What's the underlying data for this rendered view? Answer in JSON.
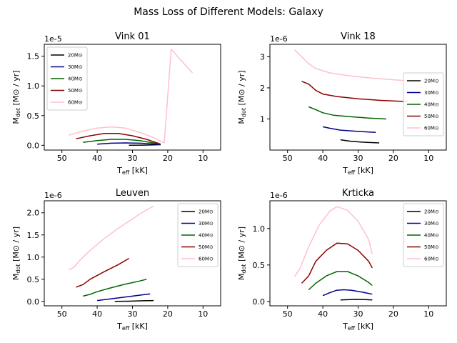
{
  "figure": {
    "title": "Mass Loss of Different Models: Galaxy"
  },
  "legend_labels": [
    "20M⊙",
    "30M⊙",
    "40M⊙",
    "50M⊙",
    "60M⊙"
  ],
  "chart_data": [
    {
      "type": "line",
      "title": "Vink 01",
      "xlabel": "T_eff [kK]",
      "ylabel": "M_dot [M⊙ / yr]",
      "offset_text": "1e-5",
      "xlim": [
        55,
        5
      ],
      "ylim": [
        -0.08,
        1.7
      ],
      "xticks": [
        50,
        40,
        30,
        20,
        10
      ],
      "yticks": [
        0.0,
        0.5,
        1.0,
        1.5
      ],
      "ytick_labels": [
        "0.0",
        "0.5",
        "1.0",
        "1.5"
      ],
      "legend": "upper left",
      "series": [
        {
          "name": "20M⊙",
          "color": "#000000",
          "points": [
            [
              31,
              0.0
            ],
            [
              27,
              0.003
            ],
            [
              25,
              0.005
            ],
            [
              22,
              0.01
            ]
          ]
        },
        {
          "name": "30M⊙",
          "color": "#00008b",
          "points": [
            [
              40,
              0.02
            ],
            [
              36,
              0.035
            ],
            [
              32,
              0.04
            ],
            [
              28,
              0.035
            ],
            [
              25,
              0.025
            ],
            [
              22,
              0.012
            ]
          ]
        },
        {
          "name": "40M⊙",
          "color": "#006400",
          "points": [
            [
              44,
              0.05
            ],
            [
              40,
              0.08
            ],
            [
              36,
              0.1
            ],
            [
              32,
              0.1
            ],
            [
              28,
              0.08
            ],
            [
              25,
              0.05
            ],
            [
              22,
              0.02
            ]
          ]
        },
        {
          "name": "50M⊙",
          "color": "#8b0000",
          "points": [
            [
              46,
              0.11
            ],
            [
              42,
              0.16
            ],
            [
              38,
              0.2
            ],
            [
              34,
              0.2
            ],
            [
              30,
              0.16
            ],
            [
              26,
              0.1
            ],
            [
              22,
              0.02
            ]
          ]
        },
        {
          "name": "60M⊙",
          "color": "#ffc0cb",
          "points": [
            [
              48,
              0.17
            ],
            [
              44,
              0.24
            ],
            [
              40,
              0.29
            ],
            [
              36,
              0.31
            ],
            [
              32,
              0.29
            ],
            [
              28,
              0.22
            ],
            [
              24,
              0.13
            ],
            [
              21,
              0.04
            ],
            [
              19,
              1.62
            ],
            [
              17,
              1.48
            ],
            [
              15,
              1.35
            ],
            [
              13,
              1.22
            ]
          ]
        }
      ]
    },
    {
      "type": "line",
      "title": "Vink 18",
      "xlabel": "T_eff [kK]",
      "ylabel": "M_dot [M⊙ / yr]",
      "offset_text": "1e-6",
      "xlim": [
        55,
        5
      ],
      "ylim": [
        0.0,
        3.4
      ],
      "xticks": [
        50,
        40,
        30,
        20,
        10
      ],
      "yticks": [
        1,
        2,
        3
      ],
      "ytick_labels": [
        "1",
        "2",
        "3"
      ],
      "legend": "right",
      "series": [
        {
          "name": "20M⊙",
          "color": "#000000",
          "points": [
            [
              35,
              0.33
            ],
            [
              32,
              0.28
            ],
            [
              28,
              0.25
            ],
            [
              24,
              0.23
            ]
          ]
        },
        {
          "name": "30M⊙",
          "color": "#00008b",
          "points": [
            [
              40,
              0.75
            ],
            [
              38,
              0.7
            ],
            [
              35,
              0.64
            ],
            [
              30,
              0.6
            ],
            [
              25,
              0.57
            ]
          ]
        },
        {
          "name": "40M⊙",
          "color": "#006400",
          "points": [
            [
              44,
              1.39
            ],
            [
              42,
              1.3
            ],
            [
              40,
              1.2
            ],
            [
              37,
              1.12
            ],
            [
              32,
              1.07
            ],
            [
              27,
              1.03
            ],
            [
              22,
              1.0
            ]
          ]
        },
        {
          "name": "50M⊙",
          "color": "#8b0000",
          "points": [
            [
              46,
              2.21
            ],
            [
              44,
              2.12
            ],
            [
              42,
              1.92
            ],
            [
              40,
              1.8
            ],
            [
              36,
              1.72
            ],
            [
              30,
              1.65
            ],
            [
              24,
              1.6
            ],
            [
              18,
              1.57
            ],
            [
              16,
              1.56
            ]
          ]
        },
        {
          "name": "60M⊙",
          "color": "#ffc0cb",
          "points": [
            [
              48,
              3.22
            ],
            [
              46,
              3.0
            ],
            [
              44,
              2.78
            ],
            [
              42,
              2.62
            ],
            [
              38,
              2.48
            ],
            [
              32,
              2.38
            ],
            [
              26,
              2.31
            ],
            [
              20,
              2.26
            ],
            [
              15,
              2.22
            ],
            [
              12,
              2.2
            ]
          ]
        }
      ]
    },
    {
      "type": "line",
      "title": "Leuven",
      "xlabel": "T_eff [kK]",
      "ylabel": "M_dot [M⊙ / yr]",
      "offset_text": "1e-6",
      "xlim": [
        55,
        5
      ],
      "ylim": [
        -0.1,
        2.27
      ],
      "xticks": [
        50,
        40,
        30,
        20,
        10
      ],
      "yticks": [
        0.0,
        0.5,
        1.0,
        1.5,
        2.0
      ],
      "ytick_labels": [
        "0.0",
        "0.5",
        "1.0",
        "1.5",
        "2.0"
      ],
      "legend": "upper right",
      "series": [
        {
          "name": "20M⊙",
          "color": "#000000",
          "points": [
            [
              35,
              0.0
            ],
            [
              31,
              0.005
            ],
            [
              27,
              0.015
            ],
            [
              24,
              0.02
            ]
          ]
        },
        {
          "name": "30M⊙",
          "color": "#00008b",
          "points": [
            [
              40,
              0.02
            ],
            [
              36,
              0.06
            ],
            [
              32,
              0.1
            ],
            [
              28,
              0.14
            ],
            [
              25,
              0.17
            ]
          ]
        },
        {
          "name": "40M⊙",
          "color": "#006400",
          "points": [
            [
              44,
              0.12
            ],
            [
              42,
              0.16
            ],
            [
              40,
              0.22
            ],
            [
              36,
              0.31
            ],
            [
              32,
              0.39
            ],
            [
              28,
              0.46
            ],
            [
              26,
              0.5
            ]
          ]
        },
        {
          "name": "50M⊙",
          "color": "#8b0000",
          "points": [
            [
              46,
              0.32
            ],
            [
              44,
              0.38
            ],
            [
              42,
              0.5
            ],
            [
              38,
              0.67
            ],
            [
              34,
              0.83
            ],
            [
              31,
              0.97
            ]
          ]
        },
        {
          "name": "60M⊙",
          "color": "#ffc0cb",
          "points": [
            [
              48,
              0.71
            ],
            [
              46.5,
              0.78
            ],
            [
              45,
              0.92
            ],
            [
              42,
              1.15
            ],
            [
              38,
              1.42
            ],
            [
              34,
              1.65
            ],
            [
              30,
              1.86
            ],
            [
              27,
              2.02
            ],
            [
              24,
              2.15
            ]
          ]
        }
      ]
    },
    {
      "type": "line",
      "title": "Krticka",
      "xlabel": "T_eff [kK]",
      "ylabel": "M_dot [M⊙ / yr]",
      "offset_text": "1e-6",
      "xlim": [
        55,
        5
      ],
      "ylim": [
        -0.06,
        1.38
      ],
      "xticks": [
        50,
        40,
        30,
        20,
        10
      ],
      "yticks": [
        0.0,
        0.5,
        1.0
      ],
      "ytick_labels": [
        "0.0",
        "0.5",
        "1.0"
      ],
      "legend": "upper right",
      "series": [
        {
          "name": "20M⊙",
          "color": "#000000",
          "points": [
            [
              35,
              0.02
            ],
            [
              31,
              0.028
            ],
            [
              28,
              0.025
            ],
            [
              26,
              0.02
            ]
          ]
        },
        {
          "name": "30M⊙",
          "color": "#00008b",
          "points": [
            [
              40,
              0.08
            ],
            [
              38,
              0.12
            ],
            [
              36,
              0.155
            ],
            [
              34,
              0.16
            ],
            [
              32,
              0.155
            ],
            [
              29,
              0.13
            ],
            [
              26,
              0.1
            ]
          ]
        },
        {
          "name": "40M⊙",
          "color": "#006400",
          "points": [
            [
              44,
              0.16
            ],
            [
              42,
              0.25
            ],
            [
              39,
              0.35
            ],
            [
              36,
              0.41
            ],
            [
              33,
              0.41
            ],
            [
              30,
              0.35
            ],
            [
              27,
              0.26
            ],
            [
              26,
              0.22
            ]
          ]
        },
        {
          "name": "50M⊙",
          "color": "#8b0000",
          "points": [
            [
              46,
              0.25
            ],
            [
              44,
              0.35
            ],
            [
              42,
              0.55
            ],
            [
              39,
              0.7
            ],
            [
              36,
              0.8
            ],
            [
              33,
              0.79
            ],
            [
              30,
              0.7
            ],
            [
              27,
              0.55
            ],
            [
              26,
              0.46
            ]
          ]
        },
        {
          "name": "60M⊙",
          "color": "#ffc0cb",
          "points": [
            [
              48,
              0.34
            ],
            [
              46.5,
              0.45
            ],
            [
              44,
              0.75
            ],
            [
              41,
              1.05
            ],
            [
              38,
              1.24
            ],
            [
              36,
              1.3
            ],
            [
              33,
              1.25
            ],
            [
              30,
              1.1
            ],
            [
              27,
              0.85
            ],
            [
              26,
              0.65
            ]
          ]
        }
      ]
    }
  ]
}
